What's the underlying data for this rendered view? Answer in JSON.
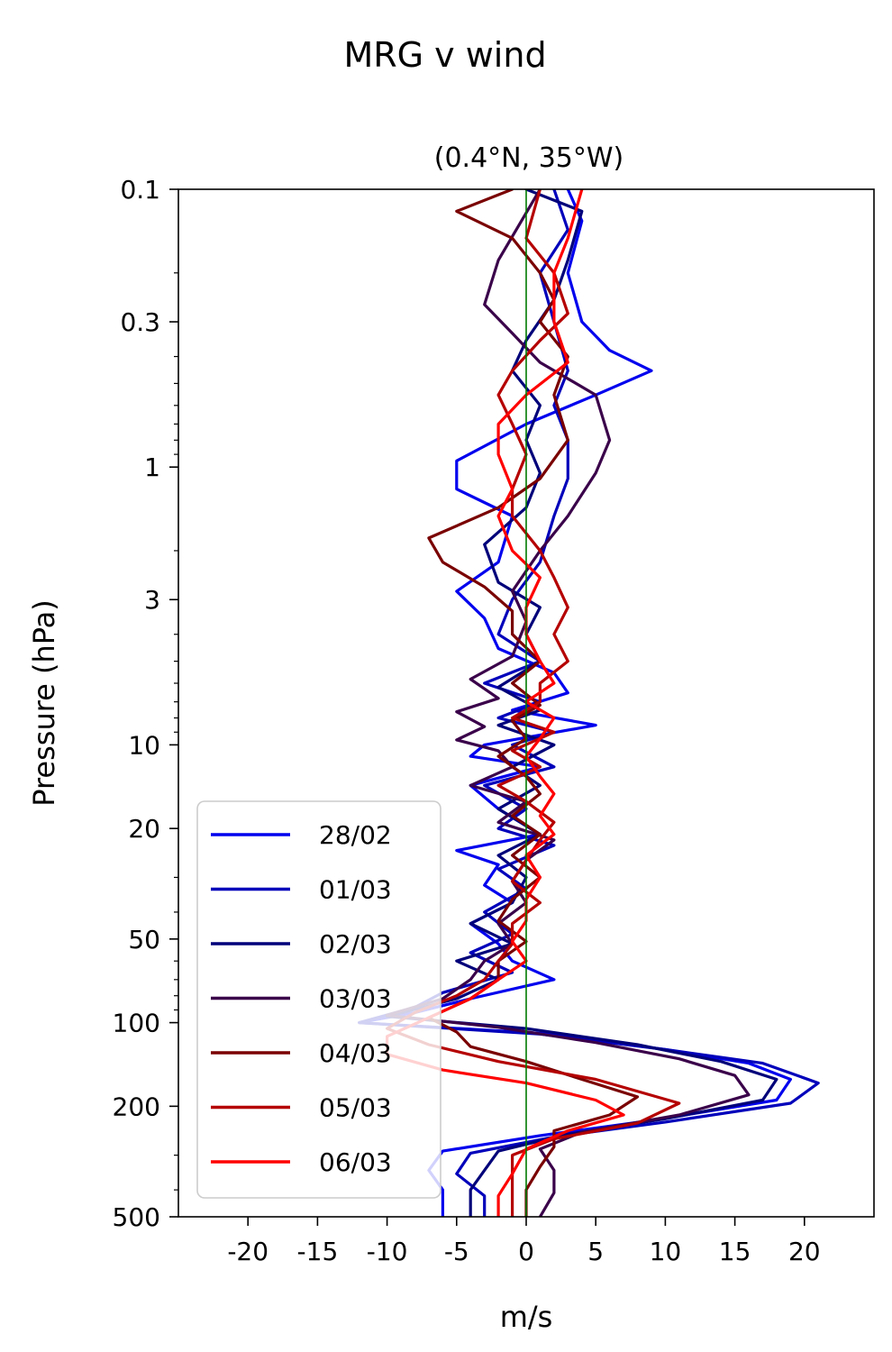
{
  "chart_data": {
    "type": "line",
    "suptitle": "MRG v wind",
    "title": "(0.4°N, 35°W)",
    "xlabel": "m/s",
    "ylabel": "Pressure (hPa)",
    "xlim": [
      -25,
      25
    ],
    "ylim": [
      500,
      0.1
    ],
    "yscale": "log",
    "yinverted": true,
    "xticks": [
      -20,
      -15,
      -10,
      -5,
      0,
      5,
      10,
      15,
      20
    ],
    "xtick_labels": [
      "-20",
      "-15",
      "-10",
      "-5",
      "0",
      "5",
      "10",
      "15",
      "20"
    ],
    "yticks": [
      0.1,
      0.3,
      1,
      3,
      10,
      20,
      50,
      100,
      200,
      500
    ],
    "ytick_labels": [
      "0.1",
      "0.3",
      "1",
      "3",
      "10",
      "20",
      "50",
      "100",
      "200",
      "500"
    ],
    "grid": false,
    "legend_position": "lower-left",
    "reference_line": {
      "x": 0,
      "color": "#007a00"
    },
    "series": [
      {
        "name": "28/02",
        "color": "#0000ee",
        "points": [
          [
            3,
            0.1
          ],
          [
            4,
            0.13
          ],
          [
            3,
            0.2
          ],
          [
            4,
            0.3
          ],
          [
            6,
            0.38
          ],
          [
            9,
            0.45
          ],
          [
            5,
            0.55
          ],
          [
            0,
            0.7
          ],
          [
            -5,
            0.95
          ],
          [
            -5,
            1.2
          ],
          [
            -1,
            1.5
          ],
          [
            -2,
            2.2
          ],
          [
            -5,
            2.8
          ],
          [
            -3,
            3.5
          ],
          [
            -2,
            4.5
          ],
          [
            2,
            5.5
          ],
          [
            3,
            6.5
          ],
          [
            -1,
            7.5
          ],
          [
            5,
            8.5
          ],
          [
            -3,
            10
          ],
          [
            -4,
            11
          ],
          [
            1,
            12
          ],
          [
            -4,
            14
          ],
          [
            -2,
            17
          ],
          [
            1,
            21
          ],
          [
            -5,
            24
          ],
          [
            -2,
            27
          ],
          [
            -3,
            32
          ],
          [
            -1,
            37
          ],
          [
            -4,
            44
          ],
          [
            -2,
            52
          ],
          [
            -1,
            60
          ],
          [
            2,
            70
          ],
          [
            -4,
            82
          ],
          [
            -8,
            92
          ],
          [
            -12,
            100
          ],
          [
            2,
            110
          ],
          [
            10,
            125
          ],
          [
            16,
            140
          ],
          [
            19,
            160
          ],
          [
            18,
            190
          ],
          [
            9,
            225
          ],
          [
            1,
            255
          ],
          [
            -6,
            290
          ],
          [
            -7,
            340
          ],
          [
            -6,
            400
          ],
          [
            -6,
            500
          ]
        ]
      },
      {
        "name": "01/03",
        "color": "#0000bb",
        "points": [
          [
            2,
            0.1
          ],
          [
            3,
            0.14
          ],
          [
            1,
            0.2
          ],
          [
            2,
            0.3
          ],
          [
            3,
            0.45
          ],
          [
            2,
            0.6
          ],
          [
            3,
            0.8
          ],
          [
            3,
            1.1
          ],
          [
            2,
            1.5
          ],
          [
            1,
            2.2
          ],
          [
            -1,
            3
          ],
          [
            -2,
            4
          ],
          [
            1,
            5
          ],
          [
            -3,
            6
          ],
          [
            1,
            7
          ],
          [
            -2,
            8
          ],
          [
            2,
            9
          ],
          [
            -1,
            10
          ],
          [
            2,
            12
          ],
          [
            -3,
            14
          ],
          [
            0,
            17
          ],
          [
            -2,
            20
          ],
          [
            2,
            23
          ],
          [
            -2,
            28
          ],
          [
            0,
            33
          ],
          [
            -3,
            40
          ],
          [
            -1,
            48
          ],
          [
            -4,
            56
          ],
          [
            -1,
            66
          ],
          [
            -6,
            78
          ],
          [
            -8,
            88
          ],
          [
            -12,
            100
          ],
          [
            1,
            110
          ],
          [
            10,
            125
          ],
          [
            17,
            140
          ],
          [
            21,
            165
          ],
          [
            19,
            195
          ],
          [
            10,
            228
          ],
          [
            2,
            258
          ],
          [
            -4,
            295
          ],
          [
            -5,
            350
          ],
          [
            -3,
            420
          ],
          [
            -3,
            500
          ]
        ]
      },
      {
        "name": "02/03",
        "color": "#00007a",
        "points": [
          [
            0,
            0.1
          ],
          [
            4,
            0.12
          ],
          [
            3,
            0.18
          ],
          [
            2,
            0.25
          ],
          [
            0,
            0.35
          ],
          [
            -1,
            0.45
          ],
          [
            1,
            0.6
          ],
          [
            0,
            0.8
          ],
          [
            1,
            1.05
          ],
          [
            0,
            1.4
          ],
          [
            -3,
            1.9
          ],
          [
            -2,
            2.6
          ],
          [
            1,
            3.2
          ],
          [
            0,
            4
          ],
          [
            1,
            5
          ],
          [
            -2,
            6.2
          ],
          [
            1,
            7.5
          ],
          [
            -2,
            8.5
          ],
          [
            2,
            10
          ],
          [
            -1,
            12
          ],
          [
            1,
            14
          ],
          [
            -2,
            17
          ],
          [
            1,
            21
          ],
          [
            -2,
            25
          ],
          [
            0,
            30
          ],
          [
            -1,
            37
          ],
          [
            -4,
            44
          ],
          [
            -1,
            52
          ],
          [
            -5,
            60
          ],
          [
            -2,
            70
          ],
          [
            -5,
            82
          ],
          [
            -10,
            95
          ],
          [
            0,
            105
          ],
          [
            8,
            120
          ],
          [
            14,
            138
          ],
          [
            18,
            160
          ],
          [
            17,
            190
          ],
          [
            10,
            222
          ],
          [
            3,
            252
          ],
          [
            -2,
            290
          ],
          [
            -3,
            340
          ],
          [
            -4,
            400
          ],
          [
            -4,
            500
          ]
        ]
      },
      {
        "name": "03/03",
        "color": "#3a004a",
        "points": [
          [
            1,
            0.1
          ],
          [
            -2,
            0.18
          ],
          [
            -3,
            0.26
          ],
          [
            -1,
            0.33
          ],
          [
            1,
            0.42
          ],
          [
            5,
            0.55
          ],
          [
            6,
            0.8
          ],
          [
            5,
            1.05
          ],
          [
            3,
            1.5
          ],
          [
            1,
            2
          ],
          [
            -1,
            2.8
          ],
          [
            0,
            3.6
          ],
          [
            -1,
            4.8
          ],
          [
            -4,
            5.8
          ],
          [
            -2,
            6.8
          ],
          [
            -5,
            7.6
          ],
          [
            -3,
            8.6
          ],
          [
            -5,
            9.6
          ],
          [
            -2,
            10.5
          ],
          [
            -1,
            12
          ],
          [
            -4,
            14
          ],
          [
            0,
            16
          ],
          [
            -2,
            19
          ],
          [
            2,
            22
          ],
          [
            0,
            26
          ],
          [
            -1,
            31
          ],
          [
            0,
            37
          ],
          [
            -2,
            44
          ],
          [
            -1,
            52
          ],
          [
            -3,
            60
          ],
          [
            -4,
            70
          ],
          [
            -6,
            82
          ],
          [
            -10,
            94
          ],
          [
            -2,
            104
          ],
          [
            5,
            118
          ],
          [
            11,
            135
          ],
          [
            15,
            155
          ],
          [
            16,
            182
          ],
          [
            11,
            215
          ],
          [
            4,
            248
          ],
          [
            1,
            285
          ],
          [
            2,
            340
          ],
          [
            2,
            410
          ],
          [
            1,
            500
          ]
        ]
      },
      {
        "name": "04/03",
        "color": "#7a0000",
        "points": [
          [
            -1,
            0.1
          ],
          [
            -5,
            0.12
          ],
          [
            -1,
            0.15
          ],
          [
            1,
            0.2
          ],
          [
            2,
            0.25
          ],
          [
            1,
            0.3
          ],
          [
            3,
            0.4
          ],
          [
            2,
            0.55
          ],
          [
            3,
            0.8
          ],
          [
            1,
            1.1
          ],
          [
            -2,
            1.4
          ],
          [
            -7,
            1.8
          ],
          [
            -6,
            2.2
          ],
          [
            -3,
            2.7
          ],
          [
            -1,
            3.3
          ],
          [
            -1,
            4
          ],
          [
            1,
            5
          ],
          [
            -1,
            6
          ],
          [
            1,
            7.2
          ],
          [
            -1,
            8.2
          ],
          [
            0,
            9.5
          ],
          [
            -2,
            11
          ],
          [
            0,
            13
          ],
          [
            1,
            15
          ],
          [
            -1,
            18
          ],
          [
            1,
            21
          ],
          [
            -1,
            25
          ],
          [
            1,
            30
          ],
          [
            -1,
            36
          ],
          [
            -2,
            43
          ],
          [
            0,
            51
          ],
          [
            -2,
            60
          ],
          [
            -2,
            70
          ],
          [
            -4,
            82
          ],
          [
            -7,
            96
          ],
          [
            -5,
            108
          ],
          [
            -4,
            122
          ],
          [
            0,
            138
          ],
          [
            4,
            160
          ],
          [
            8,
            185
          ],
          [
            6,
            215
          ],
          [
            2,
            245
          ],
          [
            2,
            280
          ],
          [
            1,
            330
          ],
          [
            0,
            400
          ],
          [
            0,
            500
          ]
        ]
      },
      {
        "name": "05/03",
        "color": "#b50000",
        "points": [
          [
            1,
            0.1
          ],
          [
            0,
            0.15
          ],
          [
            2,
            0.2
          ],
          [
            3,
            0.28
          ],
          [
            1,
            0.35
          ],
          [
            -1,
            0.45
          ],
          [
            -2,
            0.55
          ],
          [
            -1,
            0.7
          ],
          [
            0,
            0.9
          ],
          [
            -1,
            1.2
          ],
          [
            -1,
            1.5
          ],
          [
            1,
            2
          ],
          [
            2,
            2.5
          ],
          [
            3,
            3.2
          ],
          [
            2,
            4
          ],
          [
            3,
            5
          ],
          [
            1,
            6
          ],
          [
            1,
            7
          ],
          [
            -1,
            8
          ],
          [
            2,
            9
          ],
          [
            -1,
            10.5
          ],
          [
            1,
            12
          ],
          [
            -2,
            14
          ],
          [
            0,
            16
          ],
          [
            2,
            19
          ],
          [
            1,
            22
          ],
          [
            0,
            26
          ],
          [
            -1,
            31
          ],
          [
            1,
            37
          ],
          [
            -1,
            44
          ],
          [
            -1,
            52
          ],
          [
            -2,
            60
          ],
          [
            -3,
            70
          ],
          [
            -5,
            80
          ],
          [
            -8,
            92
          ],
          [
            -10,
            105
          ],
          [
            -7,
            120
          ],
          [
            -2,
            138
          ],
          [
            5,
            160
          ],
          [
            11,
            195
          ],
          [
            8,
            230
          ],
          [
            2,
            262
          ],
          [
            -1,
            300
          ],
          [
            -1,
            360
          ],
          [
            -1,
            430
          ],
          [
            -1,
            500
          ]
        ]
      },
      {
        "name": "06/03",
        "color": "#ff0000",
        "points": [
          [
            4,
            0.1
          ],
          [
            3,
            0.15
          ],
          [
            2,
            0.2
          ],
          [
            2,
            0.3
          ],
          [
            3,
            0.42
          ],
          [
            0,
            0.55
          ],
          [
            -2,
            0.7
          ],
          [
            -2,
            0.9
          ],
          [
            -1,
            1.2
          ],
          [
            -2,
            1.5
          ],
          [
            -1,
            2
          ],
          [
            1,
            2.5
          ],
          [
            0,
            3.2
          ],
          [
            0,
            4
          ],
          [
            1,
            5
          ],
          [
            2,
            6
          ],
          [
            0,
            7
          ],
          [
            2,
            8
          ],
          [
            1,
            9.5
          ],
          [
            0,
            11
          ],
          [
            1,
            13
          ],
          [
            2,
            15
          ],
          [
            1,
            18
          ],
          [
            2,
            21
          ],
          [
            0,
            25
          ],
          [
            1,
            30
          ],
          [
            0,
            36
          ],
          [
            0,
            43
          ],
          [
            -1,
            51
          ],
          [
            0,
            60
          ],
          [
            -2,
            70
          ],
          [
            -4,
            82
          ],
          [
            -7,
            96
          ],
          [
            -10,
            112
          ],
          [
            -10,
            130
          ],
          [
            -6,
            148
          ],
          [
            0,
            165
          ],
          [
            5,
            190
          ],
          [
            7,
            215
          ],
          [
            3,
            245
          ],
          [
            0,
            285
          ],
          [
            -1,
            350
          ],
          [
            -2,
            420
          ],
          [
            -2,
            500
          ]
        ]
      }
    ]
  }
}
